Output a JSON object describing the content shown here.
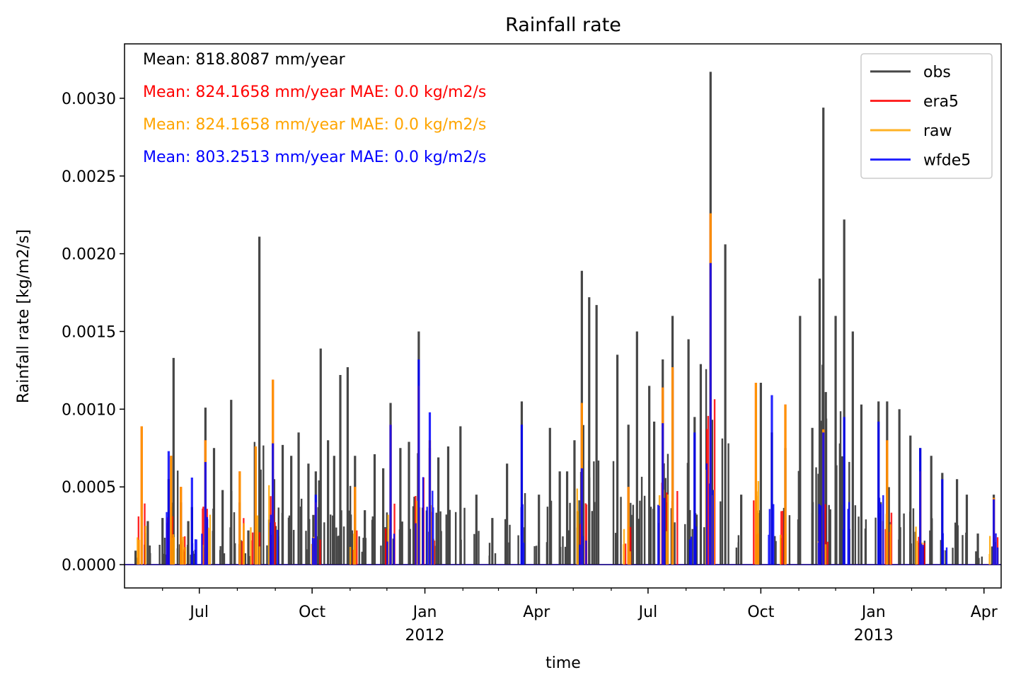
{
  "chart_data": {
    "type": "line",
    "title": "Rainfall rate",
    "xlabel": "time",
    "ylabel": "Rainfall rate [kg/m2/s]",
    "x_range": [
      "2011-05-01",
      "2013-04-15"
    ],
    "ylim": [
      -0.00015,
      0.00335
    ],
    "y_ticks": [
      {
        "value": 0.0,
        "label": "0.0000"
      },
      {
        "value": 0.0005,
        "label": "0.0005"
      },
      {
        "value": 0.001,
        "label": "0.0010"
      },
      {
        "value": 0.0015,
        "label": "0.0015"
      },
      {
        "value": 0.002,
        "label": "0.0020"
      },
      {
        "value": 0.0025,
        "label": "0.0025"
      },
      {
        "value": 0.003,
        "label": "0.0030"
      }
    ],
    "x_major_ticks": [
      {
        "date": "2011-07-01",
        "label": "Jul",
        "year": ""
      },
      {
        "date": "2011-10-01",
        "label": "Oct",
        "year": ""
      },
      {
        "date": "2012-01-01",
        "label": "Jan",
        "year": "2012"
      },
      {
        "date": "2012-04-01",
        "label": "Apr",
        "year": ""
      },
      {
        "date": "2012-07-01",
        "label": "Jul",
        "year": ""
      },
      {
        "date": "2012-10-01",
        "label": "Oct",
        "year": ""
      },
      {
        "date": "2013-01-01",
        "label": "Jan",
        "year": "2013"
      },
      {
        "date": "2013-04-01",
        "label": "Apr",
        "year": ""
      }
    ],
    "x_minor_ticks": [
      "2011-06-01",
      "2011-08-01",
      "2011-09-01",
      "2011-11-01",
      "2011-12-01",
      "2012-02-01",
      "2012-03-01",
      "2012-05-01",
      "2012-06-01",
      "2012-08-01",
      "2012-09-01",
      "2012-11-01",
      "2012-12-01",
      "2013-02-01",
      "2013-03-01"
    ],
    "annotations": [
      {
        "text": "Mean: 818.8087 mm/year",
        "color": "#000000"
      },
      {
        "text": "Mean: 824.1658 mm/year MAE: 0.0 kg/m2/s",
        "color": "#ff0000"
      },
      {
        "text": "Mean: 824.1658 mm/year MAE: 0.0 kg/m2/s",
        "color": "#ffa500"
      },
      {
        "text": "Mean: 803.2513 mm/year MAE: 0.0 kg/m2/s",
        "color": "#0000ff"
      }
    ],
    "legend": {
      "position": "top-right"
    },
    "series": [
      {
        "name": "obs",
        "color": "#262626",
        "points": [
          [
            "2011-05-10",
            9e-05
          ],
          [
            "2011-05-20",
            0.00028
          ],
          [
            "2011-06-01",
            0.0003
          ],
          [
            "2011-06-06",
            0.00055
          ],
          [
            "2011-06-10",
            0.00133
          ],
          [
            "2011-06-16",
            0.0004
          ],
          [
            "2011-06-22",
            0.00028
          ],
          [
            "2011-06-25",
            0.00037
          ],
          [
            "2011-07-06",
            0.00101
          ],
          [
            "2011-07-13",
            0.00075
          ],
          [
            "2011-07-20",
            0.00048
          ],
          [
            "2011-07-27",
            0.00106
          ],
          [
            "2011-08-03",
            0.0004
          ],
          [
            "2011-08-10",
            0.00022
          ],
          [
            "2011-08-19",
            0.00211
          ],
          [
            "2011-08-27",
            0.00029
          ],
          [
            "2011-08-31",
            0.00055
          ],
          [
            "2011-09-07",
            0.00077
          ],
          [
            "2011-09-14",
            0.0007
          ],
          [
            "2011-09-20",
            0.00085
          ],
          [
            "2011-09-28",
            0.00065
          ],
          [
            "2011-10-02",
            0.00032
          ],
          [
            "2011-10-04",
            0.0006
          ],
          [
            "2011-10-08",
            0.00139
          ],
          [
            "2011-10-14",
            0.0008
          ],
          [
            "2011-10-19",
            0.0007
          ],
          [
            "2011-10-24",
            0.00122
          ],
          [
            "2011-10-30",
            0.00127
          ],
          [
            "2011-11-05",
            0.0007
          ],
          [
            "2011-11-13",
            0.00035
          ],
          [
            "2011-11-21",
            0.00071
          ],
          [
            "2011-11-28",
            0.00062
          ],
          [
            "2011-12-04",
            0.00104
          ],
          [
            "2011-12-12",
            0.00075
          ],
          [
            "2011-12-19",
            0.00079
          ],
          [
            "2011-12-27",
            0.0015
          ],
          [
            "2012-01-05",
            0.00075
          ],
          [
            "2012-01-12",
            0.00069
          ],
          [
            "2012-01-20",
            0.00076
          ],
          [
            "2012-01-30",
            0.00089
          ],
          [
            "2012-02-12",
            0.00045
          ],
          [
            "2012-02-25",
            0.0003
          ],
          [
            "2012-03-08",
            0.00065
          ],
          [
            "2012-03-20",
            0.00105
          ],
          [
            "2012-04-03",
            0.00045
          ],
          [
            "2012-04-12",
            0.00088
          ],
          [
            "2012-04-20",
            0.0006
          ],
          [
            "2012-04-26",
            0.0006
          ],
          [
            "2012-05-02",
            0.0008
          ],
          [
            "2012-05-08",
            0.00189
          ],
          [
            "2012-05-14",
            0.00172
          ],
          [
            "2012-05-20",
            0.00167
          ],
          [
            "2012-06-06",
            0.00135
          ],
          [
            "2012-06-15",
            0.0009
          ],
          [
            "2012-06-22",
            0.0015
          ],
          [
            "2012-07-02",
            0.00115
          ],
          [
            "2012-07-06",
            0.00092
          ],
          [
            "2012-07-13",
            0.00132
          ],
          [
            "2012-07-21",
            0.0016
          ],
          [
            "2012-08-03",
            0.00145
          ],
          [
            "2012-08-08",
            0.00095
          ],
          [
            "2012-08-13",
            0.00129
          ],
          [
            "2012-08-21",
            0.00317
          ],
          [
            "2012-09-02",
            0.00206
          ],
          [
            "2012-09-15",
            0.00045
          ],
          [
            "2012-10-01",
            0.00117
          ],
          [
            "2012-10-10",
            0.00085
          ],
          [
            "2012-10-21",
            0.00075
          ],
          [
            "2012-11-02",
            0.0016
          ],
          [
            "2012-11-12",
            0.00088
          ],
          [
            "2012-11-18",
            0.00184
          ],
          [
            "2012-11-21",
            0.00294
          ],
          [
            "2012-11-23",
            0.00111
          ],
          [
            "2012-12-01",
            0.0016
          ],
          [
            "2012-12-08",
            0.00222
          ],
          [
            "2012-12-15",
            0.0015
          ],
          [
            "2012-12-22",
            0.00103
          ],
          [
            "2013-01-05",
            0.00105
          ],
          [
            "2013-01-12",
            0.00105
          ],
          [
            "2013-01-22",
            0.001
          ],
          [
            "2013-01-31",
            0.00083
          ],
          [
            "2013-02-08",
            0.00075
          ],
          [
            "2013-02-17",
            0.0007
          ],
          [
            "2013-02-26",
            0.00059
          ],
          [
            "2013-03-10",
            0.00055
          ],
          [
            "2013-03-18",
            0.00045
          ],
          [
            "2013-03-27",
            0.0002
          ],
          [
            "2013-04-09",
            0.00045
          ]
        ]
      },
      {
        "name": "era5",
        "color": "#ff0000",
        "points": [
          [
            "2011-05-15",
            0.00089
          ],
          [
            "2011-06-08",
            0.0007
          ],
          [
            "2011-06-16",
            0.0005
          ],
          [
            "2011-07-06",
            0.0008
          ],
          [
            "2011-08-03",
            0.0006
          ],
          [
            "2011-08-16",
            0.00076
          ],
          [
            "2011-08-30",
            0.00119
          ],
          [
            "2011-10-04",
            0.0004
          ],
          [
            "2011-11-05",
            0.0005
          ],
          [
            "2011-12-04",
            0.0009
          ],
          [
            "2011-12-27",
            0.00115
          ],
          [
            "2012-01-05",
            0.0008
          ],
          [
            "2012-05-08",
            0.00104
          ],
          [
            "2012-06-15",
            0.0005
          ],
          [
            "2012-07-13",
            0.00114
          ],
          [
            "2012-07-21",
            0.00127
          ],
          [
            "2012-08-21",
            0.00226
          ],
          [
            "2012-09-27",
            0.00117
          ],
          [
            "2012-10-21",
            0.00103
          ],
          [
            "2012-11-21",
            0.00087
          ],
          [
            "2013-01-12",
            0.0008
          ],
          [
            "2013-02-08",
            0.0006
          ],
          [
            "2013-04-09",
            0.00043
          ]
        ]
      },
      {
        "name": "raw",
        "color": "#ffa500",
        "points": [
          [
            "2011-05-15",
            0.00089
          ],
          [
            "2011-06-08",
            0.0007
          ],
          [
            "2011-06-16",
            0.0005
          ],
          [
            "2011-07-06",
            0.0008
          ],
          [
            "2011-08-03",
            0.0006
          ],
          [
            "2011-08-16",
            0.00076
          ],
          [
            "2011-08-30",
            0.00119
          ],
          [
            "2011-10-04",
            0.0004
          ],
          [
            "2011-11-05",
            0.0005
          ],
          [
            "2011-12-04",
            0.0009
          ],
          [
            "2011-12-27",
            0.00115
          ],
          [
            "2012-01-05",
            0.0008
          ],
          [
            "2012-05-08",
            0.00104
          ],
          [
            "2012-06-15",
            0.0005
          ],
          [
            "2012-07-13",
            0.00114
          ],
          [
            "2012-07-21",
            0.00127
          ],
          [
            "2012-08-21",
            0.00226
          ],
          [
            "2012-09-27",
            0.00117
          ],
          [
            "2012-10-21",
            0.00103
          ],
          [
            "2012-11-21",
            0.00087
          ],
          [
            "2013-01-12",
            0.0008
          ],
          [
            "2013-02-08",
            0.0006
          ],
          [
            "2013-04-09",
            0.00043
          ]
        ]
      },
      {
        "name": "wfde5",
        "color": "#0000ff",
        "points": [
          [
            "2011-06-06",
            0.00073
          ],
          [
            "2011-06-25",
            0.00056
          ],
          [
            "2011-07-06",
            0.00066
          ],
          [
            "2011-08-30",
            0.00078
          ],
          [
            "2011-10-04",
            0.00045
          ],
          [
            "2011-12-04",
            0.0009
          ],
          [
            "2011-12-27",
            0.00132
          ],
          [
            "2012-01-05",
            0.00098
          ],
          [
            "2012-03-20",
            0.0009
          ],
          [
            "2012-05-08",
            0.00062
          ],
          [
            "2012-07-13",
            0.00091
          ],
          [
            "2012-08-08",
            0.00085
          ],
          [
            "2012-08-21",
            0.00194
          ],
          [
            "2012-10-10",
            0.00109
          ],
          [
            "2012-11-21",
            0.00085
          ],
          [
            "2012-12-08",
            0.00095
          ],
          [
            "2013-01-05",
            0.00092
          ],
          [
            "2013-02-08",
            0.00075
          ],
          [
            "2013-02-26",
            0.00055
          ],
          [
            "2013-04-09",
            0.00042
          ]
        ]
      }
    ]
  }
}
